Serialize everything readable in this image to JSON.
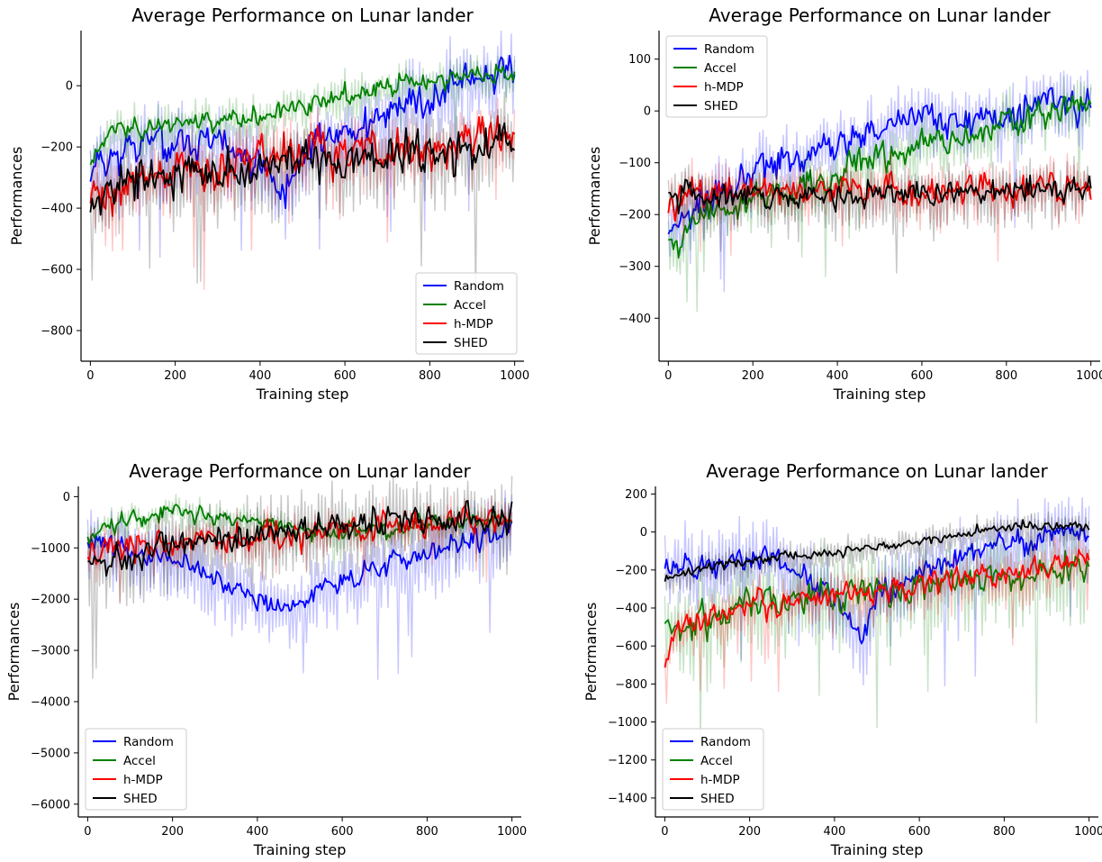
{
  "colors": {
    "Random": "#0000ff",
    "Accel": "#008000",
    "h-MDP": "#ff0000",
    "SHED": "#000000"
  },
  "chart_data": [
    {
      "type": "line",
      "title": "Average Performance on Lunar lander",
      "xlabel": "Training step",
      "ylabel": "Performances",
      "xlim": [
        -22,
        1022
      ],
      "ylim": [
        -900,
        180
      ],
      "xticks": [
        0,
        200,
        400,
        600,
        800,
        1000
      ],
      "yticks": [
        -800,
        -600,
        -400,
        -200,
        0
      ],
      "legend_placement": "lower-right",
      "grid": false,
      "series": [
        {
          "name": "Random",
          "noise": 65,
          "band": 110,
          "seed": 11,
          "trend": [
            [
              0,
              -260
            ],
            [
              100,
              -200
            ],
            [
              250,
              -180
            ],
            [
              350,
              -230
            ],
            [
              420,
              -280
            ],
            [
              450,
              -360
            ],
            [
              500,
              -220
            ],
            [
              600,
              -150
            ],
            [
              700,
              -90
            ],
            [
              800,
              -40
            ],
            [
              900,
              20
            ],
            [
              1000,
              40
            ]
          ]
        },
        {
          "name": "Accel",
          "noise": 35,
          "band": 55,
          "seed": 23,
          "trend": [
            [
              0,
              -250
            ],
            [
              50,
              -150
            ],
            [
              200,
              -120
            ],
            [
              400,
              -100
            ],
            [
              500,
              -70
            ],
            [
              600,
              -30
            ],
            [
              700,
              0
            ],
            [
              800,
              15
            ],
            [
              1000,
              40
            ]
          ]
        },
        {
          "name": "h-MDP",
          "noise": 75,
          "band": 90,
          "seed": 37,
          "trend": [
            [
              0,
              -330
            ],
            [
              50,
              -370
            ],
            [
              100,
              -300
            ],
            [
              250,
              -270
            ],
            [
              400,
              -240
            ],
            [
              600,
              -210
            ],
            [
              800,
              -190
            ],
            [
              1000,
              -170
            ]
          ]
        },
        {
          "name": "SHED",
          "noise": 75,
          "band": 120,
          "seed": 53,
          "trend": [
            [
              0,
              -360
            ],
            [
              50,
              -330
            ],
            [
              150,
              -310
            ],
            [
              300,
              -280
            ],
            [
              500,
              -250
            ],
            [
              700,
              -230
            ],
            [
              1000,
              -210
            ]
          ]
        }
      ],
      "legend": [
        "Random",
        "Accel",
        "h-MDP",
        "SHED"
      ]
    },
    {
      "type": "line",
      "title": "Average Performance on Lunar lander",
      "xlabel": "Training step",
      "ylabel": "Performances",
      "xlim": [
        -22,
        1022
      ],
      "ylim": [
        -483,
        155
      ],
      "xticks": [
        0,
        200,
        400,
        600,
        800,
        1000
      ],
      "yticks": [
        -400,
        -300,
        -200,
        -100,
        0,
        100
      ],
      "legend_placement": "upper-left",
      "grid": false,
      "series": [
        {
          "name": "Random",
          "noise": 35,
          "band": 55,
          "seed": 71,
          "trend": [
            [
              0,
              -230
            ],
            [
              50,
              -200
            ],
            [
              200,
              -120
            ],
            [
              400,
              -60
            ],
            [
              600,
              -20
            ],
            [
              800,
              0
            ],
            [
              900,
              10
            ],
            [
              1000,
              0
            ]
          ]
        },
        {
          "name": "Accel",
          "noise": 30,
          "band": 45,
          "seed": 83,
          "trend": [
            [
              0,
              -260
            ],
            [
              100,
              -190
            ],
            [
              300,
              -150
            ],
            [
              500,
              -90
            ],
            [
              700,
              -40
            ],
            [
              900,
              0
            ],
            [
              1000,
              30
            ]
          ]
        },
        {
          "name": "h-MDP",
          "noise": 30,
          "band": 45,
          "seed": 97,
          "trend": [
            [
              0,
              -170
            ],
            [
              200,
              -160
            ],
            [
              400,
              -150
            ],
            [
              600,
              -155
            ],
            [
              800,
              -155
            ],
            [
              1000,
              -150
            ]
          ]
        },
        {
          "name": "SHED",
          "noise": 28,
          "band": 50,
          "seed": 101,
          "trend": [
            [
              0,
              -160
            ],
            [
              200,
              -160
            ],
            [
              400,
              -165
            ],
            [
              600,
              -155
            ],
            [
              800,
              -150
            ],
            [
              1000,
              -145
            ]
          ]
        }
      ],
      "legend": [
        "Random",
        "Accel",
        "h-MDP",
        "SHED"
      ]
    },
    {
      "type": "line",
      "title": "Average Performance on Lunar lander",
      "xlabel": "Training step",
      "ylabel": "Performances",
      "xlim": [
        -22,
        1022
      ],
      "ylim": [
        -6250,
        200
      ],
      "xticks": [
        0,
        200,
        400,
        600,
        800,
        1000
      ],
      "yticks": [
        -6000,
        -5000,
        -4000,
        -3000,
        -2000,
        -1000,
        0
      ],
      "legend_placement": "lower-left",
      "grid": false,
      "series": [
        {
          "name": "Random",
          "noise": 230,
          "band": 600,
          "seed": 131,
          "trend": [
            [
              0,
              -800
            ],
            [
              100,
              -1100
            ],
            [
              250,
              -1300
            ],
            [
              350,
              -1800
            ],
            [
              420,
              -2100
            ],
            [
              480,
              -2200
            ],
            [
              550,
              -1800
            ],
            [
              650,
              -1500
            ],
            [
              750,
              -1200
            ],
            [
              850,
              -1000
            ],
            [
              950,
              -800
            ],
            [
              1000,
              -700
            ]
          ]
        },
        {
          "name": "Accel",
          "noise": 180,
          "band": 250,
          "seed": 149,
          "trend": [
            [
              0,
              -800
            ],
            [
              50,
              -500
            ],
            [
              200,
              -300
            ],
            [
              400,
              -500
            ],
            [
              600,
              -700
            ],
            [
              800,
              -550
            ],
            [
              1000,
              -450
            ]
          ]
        },
        {
          "name": "h-MDP",
          "noise": 280,
          "band": 300,
          "seed": 157,
          "trend": [
            [
              0,
              -1100
            ],
            [
              100,
              -900
            ],
            [
              300,
              -800
            ],
            [
              500,
              -700
            ],
            [
              700,
              -600
            ],
            [
              900,
              -500
            ],
            [
              1000,
              -450
            ]
          ]
        },
        {
          "name": "SHED",
          "noise": 320,
          "band": 700,
          "seed": 167,
          "trend": [
            [
              0,
              -1200
            ],
            [
              100,
              -1200
            ],
            [
              200,
              -1000
            ],
            [
              300,
              -800
            ],
            [
              500,
              -650
            ],
            [
              700,
              -500
            ],
            [
              900,
              -450
            ],
            [
              1000,
              -400
            ]
          ]
        }
      ],
      "legend": [
        "Random",
        "Accel",
        "h-MDP",
        "SHED"
      ]
    },
    {
      "type": "line",
      "title": "Average Performance on Lunar lander",
      "xlabel": "Training step",
      "ylabel": "Performances",
      "xlim": [
        -22,
        1022
      ],
      "ylim": [
        -1500,
        240
      ],
      "xticks": [
        0,
        200,
        400,
        600,
        800,
        1000
      ],
      "yticks": [
        -1400,
        -1200,
        -1000,
        -800,
        -600,
        -400,
        -200,
        0,
        200
      ],
      "legend_placement": "lower-left",
      "grid": false,
      "series": [
        {
          "name": "Random",
          "noise": 70,
          "band": 180,
          "seed": 181,
          "trend": [
            [
              0,
              -200
            ],
            [
              150,
              -150
            ],
            [
              250,
              -130
            ],
            [
              350,
              -250
            ],
            [
              420,
              -400
            ],
            [
              460,
              -600
            ],
            [
              500,
              -350
            ],
            [
              600,
              -200
            ],
            [
              800,
              -60
            ],
            [
              1000,
              0
            ]
          ]
        },
        {
          "name": "Accel",
          "noise": 90,
          "band": 220,
          "seed": 191,
          "trend": [
            [
              0,
              -500
            ],
            [
              100,
              -450
            ],
            [
              250,
              -350
            ],
            [
              400,
              -330
            ],
            [
              600,
              -280
            ],
            [
              800,
              -230
            ],
            [
              1000,
              -180
            ]
          ]
        },
        {
          "name": "h-MDP",
          "noise": 65,
          "band": 110,
          "seed": 199,
          "trend": [
            [
              0,
              -650
            ],
            [
              50,
              -470
            ],
            [
              200,
              -400
            ],
            [
              400,
              -330
            ],
            [
              600,
              -280
            ],
            [
              800,
              -220
            ],
            [
              1000,
              -150
            ]
          ]
        },
        {
          "name": "SHED",
          "noise": 28,
          "band": 70,
          "seed": 211,
          "trend": [
            [
              0,
              -250
            ],
            [
              100,
              -180
            ],
            [
              300,
              -120
            ],
            [
              500,
              -80
            ],
            [
              700,
              -20
            ],
            [
              800,
              30
            ],
            [
              1000,
              30
            ]
          ]
        }
      ],
      "legend": [
        "Random",
        "Accel",
        "h-MDP",
        "SHED"
      ]
    }
  ]
}
